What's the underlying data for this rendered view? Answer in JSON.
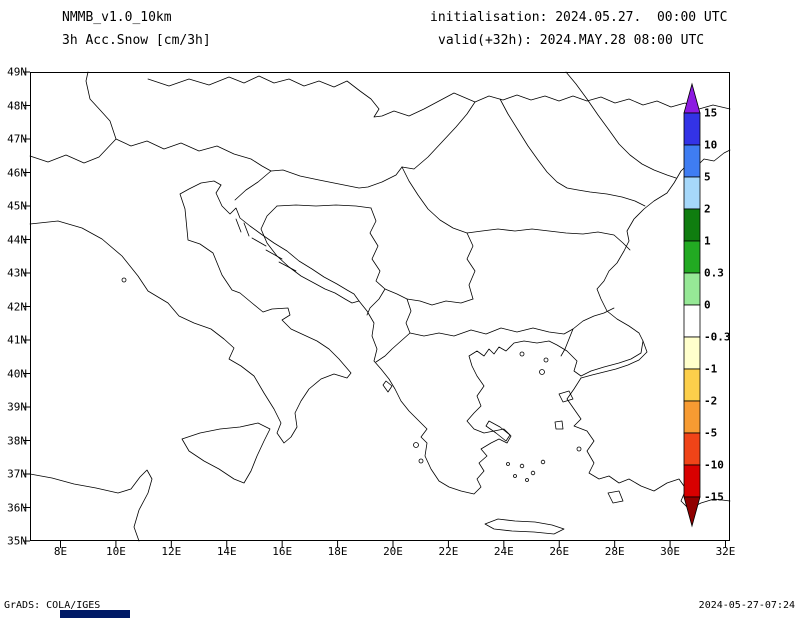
{
  "header": {
    "model": "NMMB_v1.0_10km",
    "variable": "3h Acc.Snow [cm/3h]",
    "init_line": "initialisation: 2024.05.27.  00:00 UTC",
    "valid_line": "valid(+32h): 2024.MAY.28 08:00 UTC"
  },
  "map": {
    "lat_ticks": [
      "49N",
      "48N",
      "47N",
      "46N",
      "45N",
      "44N",
      "43N",
      "42N",
      "41N",
      "40N",
      "39N",
      "38N",
      "37N",
      "36N",
      "35N"
    ],
    "lon_ticks": [
      "8E",
      "10E",
      "12E",
      "14E",
      "16E",
      "18E",
      "20E",
      "22E",
      "24E",
      "26E",
      "28E",
      "30E",
      "32E"
    ],
    "lat_range": [
      "35N",
      "49N"
    ],
    "lon_range": [
      "8E",
      "32E"
    ]
  },
  "colorbar": {
    "unit": "cm/3h",
    "labels": [
      "15",
      "10",
      "5",
      "2",
      "1",
      "0.3",
      "0",
      "-0.3",
      "-1",
      "-2",
      "-5",
      "-10",
      "-15"
    ],
    "segment_colors": [
      "#3333e6",
      "#3f7df2",
      "#a6d8fa",
      "#0f7d0f",
      "#22aa22",
      "#96e896",
      "#ffffff",
      "#ffffcc",
      "#fccf4b",
      "#f79b32",
      "#f04418",
      "#d80000"
    ],
    "arrow_top_color": "#8c1ae1",
    "arrow_bottom_color": "#900000"
  },
  "footer": {
    "credit": "GrADS: COLA/IGES",
    "timestamp": "2024-05-27-07:24",
    "logo_color": "#001a66"
  }
}
